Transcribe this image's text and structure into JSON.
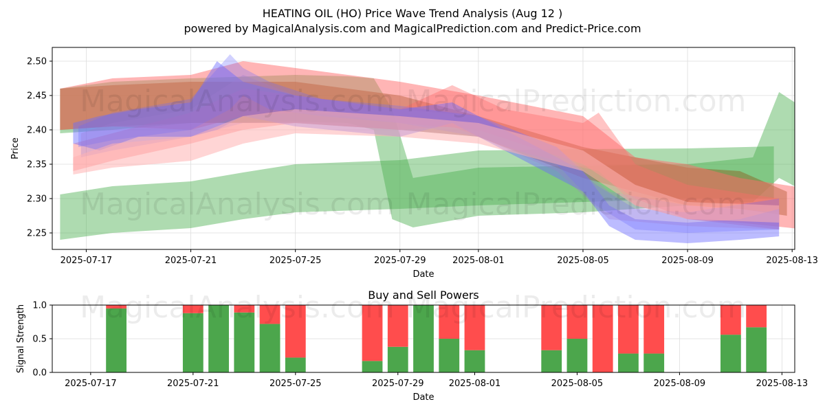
{
  "header": {
    "title": "HEATING OIL (HO) Price Wave Trend Analysis (Aug 12 )",
    "subtitle": "powered by MagicalAnalysis.com and MagicalPrediction.com and Predict-Price.com"
  },
  "watermarks": {
    "left": "MagicalAnalysis.com",
    "right": "MagicalPrediction.com"
  },
  "colors": {
    "green_band": "#4caf50",
    "red_band": "#ff6b6b",
    "blue_band": "#6b6bff",
    "pink_band": "#ffb3b3",
    "buy_bar": "#4ca64c",
    "sell_bar": "#ff4d4d"
  },
  "chart_data": [
    {
      "type": "area",
      "title": "",
      "xlabel": "Date",
      "ylabel": "Price",
      "ylim": [
        2.226,
        2.52
      ],
      "xlim_days": [
        -1.3,
        27.1
      ],
      "x_origin": "2025-07-17",
      "grid": true,
      "xticks": [
        {
          "day": 0,
          "label": "2025-07-17"
        },
        {
          "day": 4,
          "label": "2025-07-21"
        },
        {
          "day": 8,
          "label": "2025-07-25"
        },
        {
          "day": 12,
          "label": "2025-07-29"
        },
        {
          "day": 15,
          "label": "2025-08-01"
        },
        {
          "day": 19,
          "label": "2025-08-05"
        },
        {
          "day": 23,
          "label": "2025-08-09"
        },
        {
          "day": 27,
          "label": "2025-08-13"
        }
      ],
      "yticks": [
        2.25,
        2.3,
        2.35,
        2.4,
        2.45,
        2.5
      ],
      "yticklabels": [
        "2.25",
        "2.30",
        "2.35",
        "2.40",
        "2.45",
        "2.50"
      ],
      "bands": [
        {
          "name": "green-low",
          "color": "green",
          "opacity": 0.45,
          "days": [
            -1,
            1,
            4,
            6,
            8,
            12,
            15,
            19,
            23,
            26.3
          ],
          "lower": [
            2.24,
            2.25,
            2.257,
            2.27,
            2.28,
            2.285,
            2.29,
            2.295,
            2.3,
            2.3
          ],
          "upper": [
            2.306,
            2.318,
            2.325,
            2.338,
            2.35,
            2.356,
            2.37,
            2.372,
            2.373,
            2.376
          ]
        },
        {
          "name": "green-high",
          "color": "green",
          "opacity": 0.45,
          "days": [
            -1,
            1,
            4,
            8,
            10,
            11,
            11.7,
            12.5,
            15,
            19,
            23,
            25.5,
            26.5,
            27.5
          ],
          "lower": [
            2.395,
            2.4,
            2.41,
            2.412,
            2.41,
            2.4,
            2.27,
            2.258,
            2.275,
            2.28,
            2.29,
            2.295,
            2.33,
            2.31
          ],
          "upper": [
            2.46,
            2.47,
            2.475,
            2.48,
            2.478,
            2.475,
            2.43,
            2.33,
            2.345,
            2.348,
            2.35,
            2.36,
            2.455,
            2.43
          ]
        },
        {
          "name": "olive",
          "color": "olive",
          "opacity": 0.55,
          "days": [
            -1,
            1,
            4,
            8,
            12,
            15,
            19,
            23,
            25,
            26.8
          ],
          "lower": [
            2.4,
            2.405,
            2.41,
            2.41,
            2.4,
            2.39,
            2.33,
            2.29,
            2.285,
            2.275
          ],
          "upper": [
            2.46,
            2.465,
            2.47,
            2.47,
            2.45,
            2.42,
            2.375,
            2.345,
            2.34,
            2.31
          ]
        },
        {
          "name": "red-main",
          "color": "red",
          "opacity": 0.5,
          "days": [
            -1,
            1,
            4,
            6,
            8,
            10,
            12,
            15,
            19,
            21,
            23,
            25,
            27.5
          ],
          "lower": [
            2.4,
            2.405,
            2.4,
            2.42,
            2.425,
            2.42,
            2.41,
            2.4,
            2.35,
            2.3,
            2.27,
            2.265,
            2.255
          ],
          "upper": [
            2.46,
            2.475,
            2.48,
            2.5,
            2.49,
            2.48,
            2.47,
            2.45,
            2.42,
            2.36,
            2.35,
            2.33,
            2.315
          ]
        },
        {
          "name": "red-secondary",
          "color": "red",
          "opacity": 0.4,
          "days": [
            -0.5,
            1,
            4,
            6,
            8,
            12,
            14,
            16,
            19,
            19.6,
            21,
            23,
            26.5
          ],
          "lower": [
            2.34,
            2.355,
            2.38,
            2.4,
            2.41,
            2.4,
            2.405,
            2.375,
            2.345,
            2.34,
            2.29,
            2.27,
            2.255
          ],
          "upper": [
            2.38,
            2.395,
            2.425,
            2.46,
            2.45,
            2.43,
            2.465,
            2.43,
            2.41,
            2.425,
            2.35,
            2.32,
            2.3
          ]
        },
        {
          "name": "blue-main",
          "color": "blue",
          "opacity": 0.45,
          "days": [
            -0.5,
            0.5,
            2,
            4,
            5,
            6,
            8,
            12,
            14,
            16,
            19,
            20,
            21,
            23,
            25,
            26.5
          ],
          "lower": [
            2.38,
            2.37,
            2.39,
            2.39,
            2.4,
            2.42,
            2.405,
            2.39,
            2.41,
            2.37,
            2.31,
            2.26,
            2.24,
            2.235,
            2.24,
            2.245
          ],
          "upper": [
            2.41,
            2.42,
            2.43,
            2.44,
            2.5,
            2.47,
            2.45,
            2.43,
            2.44,
            2.4,
            2.34,
            2.29,
            2.27,
            2.265,
            2.27,
            2.285
          ]
        },
        {
          "name": "blue-light",
          "color": "blue",
          "opacity": 0.3,
          "days": [
            -0.3,
            1,
            4,
            5.5,
            6,
            7,
            9,
            12,
            15,
            18,
            19.5,
            21,
            23,
            26.5
          ],
          "lower": [
            2.375,
            2.385,
            2.4,
            2.43,
            2.45,
            2.43,
            2.42,
            2.41,
            2.39,
            2.35,
            2.29,
            2.255,
            2.25,
            2.255
          ],
          "upper": [
            2.405,
            2.425,
            2.445,
            2.51,
            2.49,
            2.47,
            2.445,
            2.435,
            2.42,
            2.375,
            2.32,
            2.285,
            2.28,
            2.3
          ]
        },
        {
          "name": "violet",
          "color": "violet",
          "opacity": 0.3,
          "days": [
            -0.2,
            1,
            4,
            6,
            8,
            12,
            15,
            18,
            20,
            23,
            26.5
          ],
          "lower": [
            2.36,
            2.37,
            2.39,
            2.41,
            2.41,
            2.4,
            2.39,
            2.34,
            2.27,
            2.26,
            2.255
          ],
          "upper": [
            2.395,
            2.41,
            2.43,
            2.48,
            2.45,
            2.43,
            2.42,
            2.375,
            2.31,
            2.29,
            2.28
          ]
        },
        {
          "name": "pink-low",
          "color": "pink",
          "opacity": 0.55,
          "days": [
            -0.5,
            1,
            4,
            6,
            8,
            12,
            15,
            19,
            21,
            23,
            26.5
          ],
          "lower": [
            2.335,
            2.345,
            2.355,
            2.38,
            2.395,
            2.39,
            2.38,
            2.34,
            2.29,
            2.27,
            2.265
          ],
          "upper": [
            2.36,
            2.38,
            2.39,
            2.42,
            2.43,
            2.42,
            2.41,
            2.37,
            2.32,
            2.295,
            2.29
          ]
        }
      ]
    },
    {
      "type": "bar",
      "title": "Buy and Sell Powers",
      "xlabel": "Date",
      "ylabel": "Signal Strength",
      "ylim": [
        0,
        1.0
      ],
      "grid": true,
      "yticks": [
        0.0,
        0.5,
        1.0
      ],
      "yticklabels": [
        "0.0",
        "0.5",
        "1.0"
      ],
      "xticks": [
        {
          "day": 0,
          "label": "2025-07-17"
        },
        {
          "day": 4,
          "label": "2025-07-21"
        },
        {
          "day": 8,
          "label": "2025-07-25"
        },
        {
          "day": 12,
          "label": "2025-07-29"
        },
        {
          "day": 15,
          "label": "2025-08-01"
        },
        {
          "day": 19,
          "label": "2025-08-05"
        },
        {
          "day": 23,
          "label": "2025-08-09"
        },
        {
          "day": 27,
          "label": "2025-08-13"
        }
      ],
      "bars": [
        {
          "day": 1,
          "buy": 0.95
        },
        {
          "day": 4,
          "buy": 0.88
        },
        {
          "day": 5,
          "buy": 1.0
        },
        {
          "day": 6,
          "buy": 0.89
        },
        {
          "day": 7,
          "buy": 0.72
        },
        {
          "day": 8,
          "buy": 0.22
        },
        {
          "day": 11,
          "buy": 0.17
        },
        {
          "day": 12,
          "buy": 0.38
        },
        {
          "day": 13,
          "buy": 1.0
        },
        {
          "day": 14,
          "buy": 0.5
        },
        {
          "day": 15,
          "buy": 0.33
        },
        {
          "day": 18,
          "buy": 0.33
        },
        {
          "day": 19,
          "buy": 0.5
        },
        {
          "day": 20,
          "buy": 0.0
        },
        {
          "day": 21,
          "buy": 0.28
        },
        {
          "day": 22,
          "buy": 0.28
        },
        {
          "day": 25,
          "buy": 0.56
        },
        {
          "day": 26,
          "buy": 0.67
        }
      ]
    }
  ]
}
